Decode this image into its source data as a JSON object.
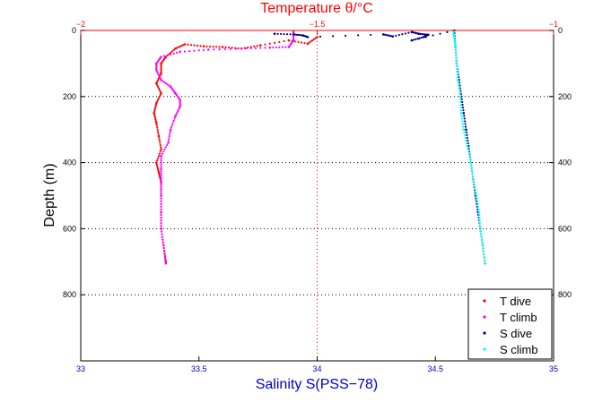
{
  "chart_data": {
    "type": "scatter",
    "top_axis": {
      "label": "Temperature θ/°C",
      "range": [
        -2,
        -1
      ],
      "ticks": [
        -2,
        -1.5,
        -1
      ],
      "tick_labels": [
        "−2",
        "−1.5",
        "−1"
      ],
      "color": "#ff0000"
    },
    "bottom_axis": {
      "label": "Salinity S(PSS−78)",
      "range": [
        33,
        35
      ],
      "ticks": [
        33,
        33.5,
        34,
        34.5,
        35
      ],
      "tick_labels": [
        "33",
        "33.5",
        "34",
        "34.5",
        "35"
      ],
      "color": "#0000cc"
    },
    "y_axis": {
      "label": "Depth (m)",
      "range": [
        0,
        1000
      ],
      "inverted": true,
      "ticks": [
        0,
        200,
        400,
        600,
        800
      ],
      "tick_labels": [
        "0",
        "200",
        "400",
        "600",
        "800"
      ]
    },
    "grid": "dotted",
    "legend_position": "bottom-right",
    "series": [
      {
        "name": "T dive",
        "axis": "temperature",
        "color": "#ff0000",
        "points": [
          [
            -1.5,
            20
          ],
          [
            -1.52,
            40
          ],
          [
            -1.56,
            30
          ],
          [
            -1.62,
            45
          ],
          [
            -1.66,
            55
          ],
          [
            -1.7,
            50
          ],
          [
            -1.74,
            48
          ],
          [
            -1.78,
            42
          ],
          [
            -1.8,
            55
          ],
          [
            -1.82,
            80
          ],
          [
            -1.83,
            100
          ],
          [
            -1.83,
            130
          ],
          [
            -1.84,
            160
          ],
          [
            -1.83,
            190
          ],
          [
            -1.84,
            220
          ],
          [
            -1.845,
            250
          ],
          [
            -1.84,
            280
          ],
          [
            -1.835,
            320
          ],
          [
            -1.83,
            360
          ],
          [
            -1.84,
            400
          ],
          [
            -1.835,
            430
          ],
          [
            -1.83,
            460
          ],
          [
            -1.83,
            500
          ],
          [
            -1.83,
            550
          ],
          [
            -1.83,
            600
          ],
          [
            -1.825,
            650
          ],
          [
            -1.82,
            700
          ]
        ]
      },
      {
        "name": "T climb",
        "axis": "temperature",
        "color": "#ff00ff",
        "points": [
          [
            -1.82,
            705
          ],
          [
            -1.825,
            650
          ],
          [
            -1.83,
            600
          ],
          [
            -1.83,
            550
          ],
          [
            -1.83,
            500
          ],
          [
            -1.83,
            460
          ],
          [
            -1.83,
            420
          ],
          [
            -1.83,
            380
          ],
          [
            -1.815,
            340
          ],
          [
            -1.81,
            300
          ],
          [
            -1.8,
            260
          ],
          [
            -1.79,
            230
          ],
          [
            -1.79,
            210
          ],
          [
            -1.8,
            190
          ],
          [
            -1.81,
            170
          ],
          [
            -1.83,
            150
          ],
          [
            -1.84,
            120
          ],
          [
            -1.84,
            100
          ],
          [
            -1.83,
            80
          ],
          [
            -1.79,
            65
          ],
          [
            -1.73,
            58
          ],
          [
            -1.66,
            55
          ],
          [
            -1.6,
            52
          ],
          [
            -1.56,
            50
          ],
          [
            -1.55,
            30
          ],
          [
            -1.55,
            5
          ]
        ]
      },
      {
        "name": "S dive",
        "axis": "salinity",
        "color": "#00008b",
        "points": [
          [
            33.82,
            10
          ],
          [
            33.9,
            12
          ],
          [
            33.94,
            15
          ],
          [
            33.96,
            20
          ],
          [
            34.28,
            12
          ],
          [
            34.32,
            18
          ],
          [
            34.4,
            5
          ],
          [
            34.43,
            10
          ],
          [
            34.47,
            13
          ],
          [
            34.45,
            20
          ],
          [
            34.4,
            30
          ],
          [
            34.58,
            0
          ],
          [
            34.585,
            50
          ],
          [
            34.59,
            100
          ],
          [
            34.6,
            150
          ],
          [
            34.61,
            200
          ],
          [
            34.62,
            250
          ],
          [
            34.63,
            300
          ],
          [
            34.64,
            350
          ],
          [
            34.65,
            400
          ],
          [
            34.66,
            450
          ],
          [
            34.67,
            500
          ],
          [
            34.68,
            550
          ],
          [
            34.69,
            600
          ],
          [
            34.7,
            650
          ],
          [
            34.71,
            705
          ]
        ]
      },
      {
        "name": "S climb",
        "axis": "salinity",
        "color": "#00ffff",
        "points": [
          [
            34.71,
            705
          ],
          [
            34.7,
            650
          ],
          [
            34.69,
            600
          ],
          [
            34.685,
            550
          ],
          [
            34.675,
            500
          ],
          [
            34.66,
            450
          ],
          [
            34.65,
            400
          ],
          [
            34.635,
            350
          ],
          [
            34.62,
            300
          ],
          [
            34.61,
            250
          ],
          [
            34.605,
            200
          ],
          [
            34.595,
            150
          ],
          [
            34.59,
            100
          ],
          [
            34.585,
            50
          ],
          [
            34.58,
            20
          ],
          [
            34.575,
            0
          ]
        ]
      }
    ]
  }
}
